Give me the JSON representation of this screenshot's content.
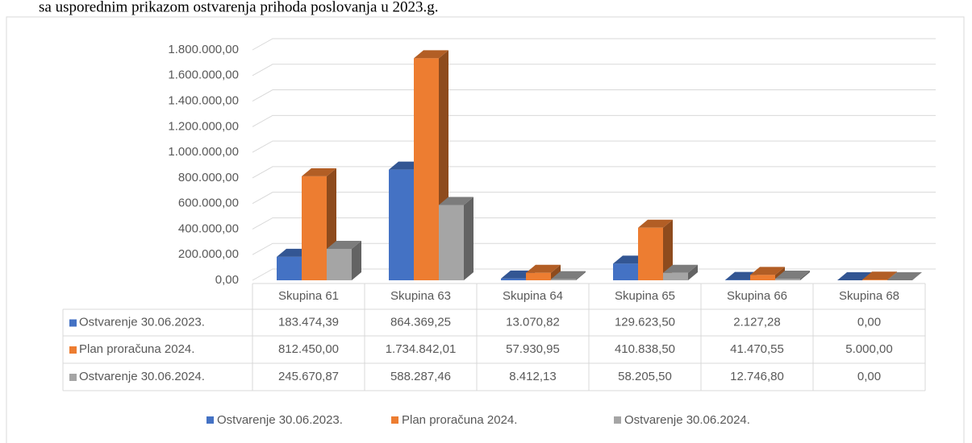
{
  "caption": "sa usporednim prikazom ostvarenja prihoda poslovanja u 2023.g.",
  "chart_data": {
    "type": "bar3d",
    "categories": [
      "Skupina 61",
      "Skupina 63",
      "Skupina 64",
      "Skupina 65",
      "Skupina 66",
      "Skupina 68"
    ],
    "series": [
      {
        "name": "Ostvarenje 30.06.2023.",
        "color": "#4472c4",
        "values": [
          183474.39,
          864369.25,
          13070.82,
          129623.5,
          2127.28,
          0
        ],
        "value_labels": [
          "183.474,39",
          "864.369,25",
          "13.070,82",
          "129.623,50",
          "2.127,28",
          "0,00"
        ]
      },
      {
        "name": "Plan proračuna 2024.",
        "color": "#ed7d31",
        "values": [
          812450.0,
          1734842.01,
          57930.95,
          410838.5,
          41470.55,
          5000.0
        ],
        "value_labels": [
          "812.450,00",
          "1.734.842,01",
          "57.930,95",
          "410.838,50",
          "41.470,55",
          "5.000,00"
        ]
      },
      {
        "name": "Ostvarenje 30.06.2024.",
        "color": "#a5a5a5",
        "values": [
          245670.87,
          588287.46,
          8412.13,
          58205.5,
          12746.8,
          0
        ],
        "value_labels": [
          "245.670,87",
          "588.287,46",
          "8.412,13",
          "58.205,50",
          "12.746,80",
          "0,00"
        ]
      }
    ],
    "ylim": [
      0,
      1800000
    ],
    "yticks": [
      {
        "value": 0,
        "label": "0,00"
      },
      {
        "value": 200000,
        "label": "200.000,00"
      },
      {
        "value": 400000,
        "label": "400.000,00"
      },
      {
        "value": 600000,
        "label": "600.000,00"
      },
      {
        "value": 800000,
        "label": "800.000,00"
      },
      {
        "value": 1000000,
        "label": "1.000.000,00"
      },
      {
        "value": 1200000,
        "label": "1.200.000,00"
      },
      {
        "value": 1400000,
        "label": "1.400.000,00"
      },
      {
        "value": 1600000,
        "label": "1.600.000,00"
      },
      {
        "value": 1800000,
        "label": "1.800.000,00"
      }
    ],
    "grid": true,
    "legend": "bottom",
    "data_table": true
  }
}
